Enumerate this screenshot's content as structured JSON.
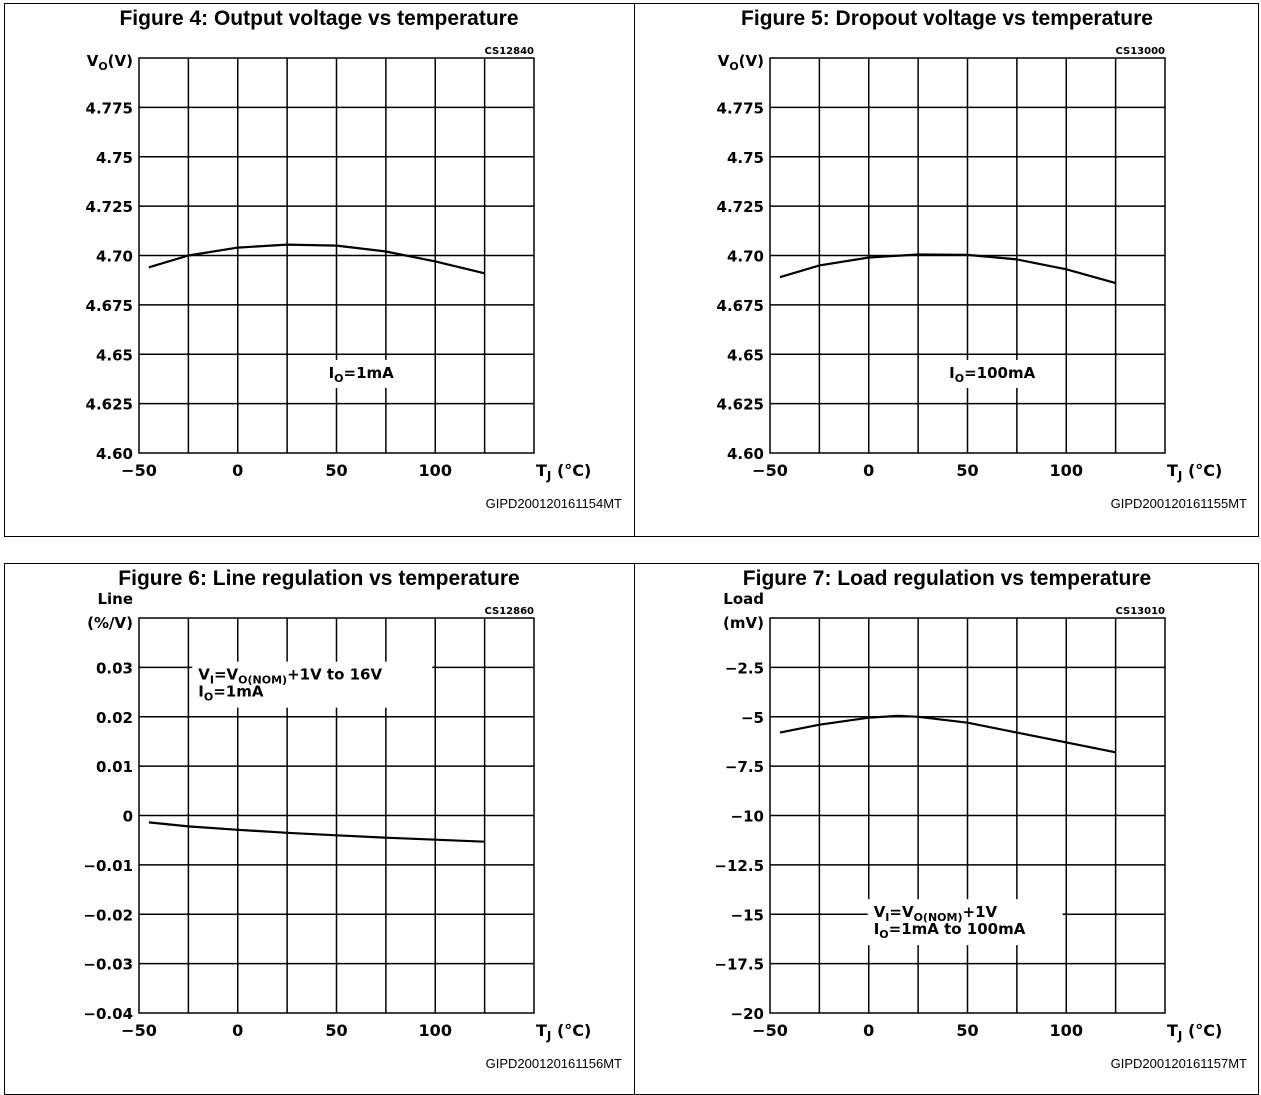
{
  "chart_data": [
    {
      "type": "line",
      "title": "Figure 4: Output voltage vs temperature",
      "code": "CS12840",
      "ylabel_lines": [
        "V<sub>O</sub>(V)"
      ],
      "xlabel": "T<sub>J</sub> (°C)",
      "xlim": [
        -50,
        150
      ],
      "ylim": [
        4.6,
        4.8
      ],
      "x_ticks": [
        -50,
        0,
        50,
        100
      ],
      "x_tick_labels": [
        "−50",
        "0",
        "50",
        "100"
      ],
      "y_ticks": [
        4.6,
        4.625,
        4.65,
        4.675,
        4.7,
        4.725,
        4.75,
        4.775
      ],
      "y_tick_labels": [
        "4.60",
        "4.625",
        "4.65",
        "4.675",
        "4.70",
        "4.725",
        "4.75",
        "4.775"
      ],
      "grid": true,
      "series": [
        {
          "x": [
            -45,
            -25,
            0,
            25,
            50,
            75,
            100,
            125
          ],
          "y": [
            4.694,
            4.7,
            4.704,
            4.7055,
            4.705,
            4.702,
            4.697,
            4.691
          ]
        }
      ],
      "annotations": [
        "I<sub>O</sub>=1mA"
      ],
      "note_anchor": [
        62.5,
        4.64
      ],
      "footer": "GIPD200120161154MT"
    },
    {
      "type": "line",
      "title": "Figure 5: Dropout voltage vs temperature",
      "code": "CS13000",
      "ylabel_lines": [
        "V<sub>O</sub>(V)"
      ],
      "xlabel": "T<sub>J</sub> (°C)",
      "xlim": [
        -50,
        150
      ],
      "ylim": [
        4.6,
        4.8
      ],
      "x_ticks": [
        -50,
        0,
        50,
        100
      ],
      "x_tick_labels": [
        "−50",
        "0",
        "50",
        "100"
      ],
      "y_ticks": [
        4.6,
        4.625,
        4.65,
        4.675,
        4.7,
        4.725,
        4.75,
        4.775
      ],
      "y_tick_labels": [
        "4.60",
        "4.625",
        "4.65",
        "4.675",
        "4.70",
        "4.725",
        "4.75",
        "4.775"
      ],
      "grid": true,
      "series": [
        {
          "x": [
            -45,
            -25,
            0,
            25,
            50,
            75,
            100,
            125
          ],
          "y": [
            4.689,
            4.695,
            4.699,
            4.7005,
            4.7003,
            4.698,
            4.693,
            4.686
          ]
        }
      ],
      "annotations": [
        "I<sub>O</sub>=100mA"
      ],
      "note_anchor": [
        62.5,
        4.64
      ],
      "footer": "GIPD200120161155MT"
    },
    {
      "type": "line",
      "title": "Figure 6: Line regulation vs temperature",
      "code": "CS12860",
      "ylabel_lines": [
        "Line",
        "(%/V)"
      ],
      "xlabel": "T<sub>J</sub> (°C)",
      "xlim": [
        -50,
        150
      ],
      "ylim": [
        -0.04,
        0.04
      ],
      "x_ticks": [
        -50,
        0,
        50,
        100
      ],
      "x_tick_labels": [
        "−50",
        "0",
        "50",
        "100"
      ],
      "y_ticks": [
        -0.04,
        -0.03,
        -0.02,
        -0.01,
        0,
        0.01,
        0.02,
        0.03
      ],
      "y_tick_labels": [
        "−0.04",
        "−0.03",
        "−0.02",
        "−0.01",
        "0",
        "0.01",
        "0.02",
        "0.03"
      ],
      "grid": true,
      "series": [
        {
          "x": [
            -45,
            -25,
            0,
            25,
            50,
            75,
            100,
            125
          ],
          "y": [
            -0.0014,
            -0.0022,
            -0.0029,
            -0.0035,
            -0.004,
            -0.0045,
            -0.0049,
            -0.0053
          ]
        }
      ],
      "annotations": [
        "V<sub>I</sub>=V<sub>O(NOM)</sub>+1V  to  16V",
        "I<sub>O</sub>=1mA"
      ],
      "note_anchor": [
        -20,
        0.0265
      ],
      "footer": "GIPD200120161156MT"
    },
    {
      "type": "line",
      "title": "Figure 7: Load regulation vs temperature",
      "code": "CS13010",
      "ylabel_lines": [
        "Load",
        "(mV)"
      ],
      "xlabel": "T<sub>J</sub> (°C)",
      "xlim": [
        -50,
        150
      ],
      "ylim": [
        -20,
        0
      ],
      "x_ticks": [
        -50,
        0,
        50,
        100
      ],
      "x_tick_labels": [
        "−50",
        "0",
        "50",
        "100"
      ],
      "y_ticks": [
        -20,
        -17.5,
        -15,
        -12.5,
        -10,
        -7.5,
        -5,
        -2.5
      ],
      "y_tick_labels": [
        "−20",
        "−17.5",
        "−15",
        "−12.5",
        "−10",
        "−7.5",
        "−5",
        "−2.5"
      ],
      "grid": true,
      "series": [
        {
          "x": [
            -45,
            -25,
            0,
            15,
            25,
            50,
            75,
            100,
            125
          ],
          "y": [
            -5.8,
            -5.4,
            -5.05,
            -4.95,
            -5.0,
            -5.3,
            -5.8,
            -6.3,
            -6.8
          ]
        }
      ],
      "annotations": [
        "V<sub>I</sub>=V<sub>O(NOM)</sub>+1V",
        "I<sub>O</sub>=1mA  to  100mA"
      ],
      "note_anchor": [
        2.5,
        -15.4
      ],
      "footer": "GIPD200120161157MT"
    }
  ]
}
